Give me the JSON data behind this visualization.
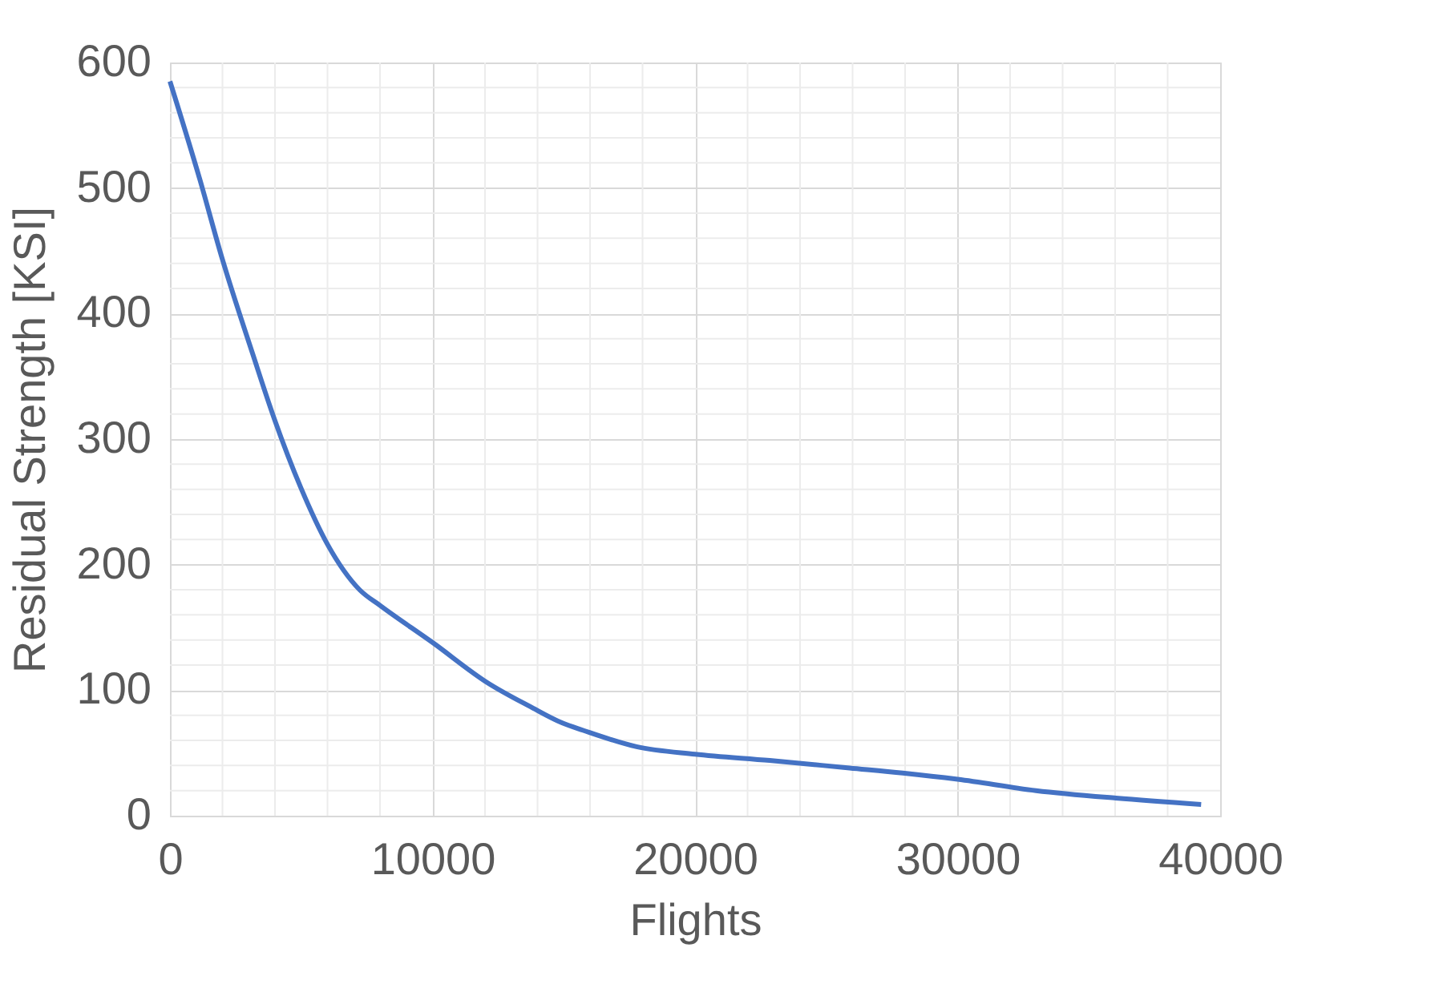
{
  "chart_data": {
    "type": "line",
    "xlabel": "Flights",
    "ylabel": "Residual Strength [KSI]",
    "x": [
      0,
      1136,
      2000,
      3165,
      3977,
      4991,
      6005,
      7222,
      8034,
      10000,
      12089,
      13713,
      14929,
      15740,
      17772,
      20000,
      22843,
      25886,
      27910,
      30000,
      32988,
      36031,
      39276
    ],
    "series": [
      {
        "color": "#4472c4",
        "values": [
          585,
          507,
          443,
          367,
          316,
          261,
          216,
          180,
          167,
          138,
          106,
          87,
          74,
          68,
          55,
          49,
          44,
          38,
          34,
          29,
          20,
          14,
          9
        ]
      }
    ],
    "xlim": [
      0,
      40000
    ],
    "xticks": [
      0,
      10000,
      20000,
      30000,
      40000
    ],
    "ylim": [
      0,
      600
    ],
    "yticks": [
      0,
      100,
      200,
      300,
      400,
      500,
      600
    ],
    "grid": true,
    "legend": false,
    "marker": "none",
    "line_style": "solid"
  }
}
